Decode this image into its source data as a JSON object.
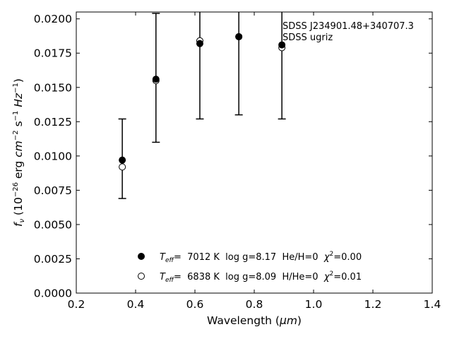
{
  "chart_data": {
    "type": "scatter",
    "title": "",
    "xlabel_main": "Wavelength (",
    "xlabel_unit": "μm",
    "xlabel_close": ")",
    "ylabel_f": "f",
    "ylabel_sub": "ν",
    "ylabel_open": " (10",
    "ylabel_exp1": "−26",
    "ylabel_erg": " erg ",
    "ylabel_cm": "cm",
    "ylabel_exp2": "−2",
    "ylabel_s": " s",
    "ylabel_exp3": "−1",
    "ylabel_hz": " Hz",
    "ylabel_exp4": "−1",
    "ylabel_close": ")",
    "xlim": [
      0.2,
      1.4
    ],
    "ylim": [
      0.0,
      0.0205
    ],
    "xticks": [
      0.2,
      0.4,
      0.6,
      0.8,
      1.0,
      1.2,
      1.4
    ],
    "xtick_labels": [
      "0.2",
      "0.4",
      "0.6",
      "0.8",
      "1.0",
      "1.2",
      "1.4"
    ],
    "yticks": [
      0.0,
      0.0025,
      0.005,
      0.0075,
      0.01,
      0.0125,
      0.015,
      0.0175,
      0.02
    ],
    "ytick_labels": [
      "0.0000",
      "0.0025",
      "0.0050",
      "0.0075",
      "0.0100",
      "0.0125",
      "0.0150",
      "0.0175",
      "0.0200"
    ],
    "grid": false,
    "annotations": [
      "SDSS J234901.48+340707.3",
      "SDSS ugriz"
    ],
    "observed": {
      "x": [
        0.3551,
        0.4686,
        0.6166,
        0.748,
        0.8932
      ],
      "err_low": [
        0.0069,
        0.011,
        0.0127,
        0.013,
        0.0127
      ],
      "err_high": [
        0.0127,
        0.0204,
        0.021,
        0.021,
        0.021
      ]
    },
    "series": [
      {
        "name": "He/H=0",
        "marker": "filled",
        "x": [
          0.3551,
          0.4686,
          0.6166,
          0.748,
          0.8932
        ],
        "y": [
          0.0097,
          0.0156,
          0.0182,
          0.0187,
          0.0181
        ]
      },
      {
        "name": "H/He=0",
        "marker": "open",
        "x": [
          0.3551,
          0.4686,
          0.6166,
          0.748,
          0.8932
        ],
        "y": [
          0.0092,
          0.0155,
          0.0184,
          0.0187,
          0.0179
        ]
      }
    ],
    "legend": [
      {
        "teff_label": "T",
        "teff_sub": "eff",
        "text": "=  7012 K  log g=8.17  He/H=0  ",
        "chi": "χ",
        "chi_sup": "2",
        "chi_val": "=0.00"
      },
      {
        "teff_label": "T",
        "teff_sub": "eff",
        "text": "=  6838 K  log g=8.09  H/He=0  ",
        "chi": "χ",
        "chi_sup": "2",
        "chi_val": "=0.01"
      }
    ]
  }
}
